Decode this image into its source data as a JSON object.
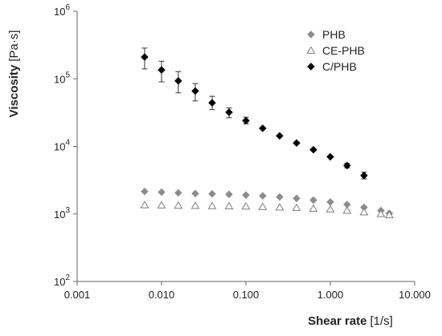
{
  "chart_data": {
    "type": "scatter",
    "x_scale": "log",
    "y_scale": "log",
    "xlim": [
      0.001,
      10
    ],
    "ylim": [
      100,
      1000000
    ],
    "x_ticks": [
      {
        "value": 0.001,
        "label": "0.001"
      },
      {
        "value": 0.01,
        "label": "0.010"
      },
      {
        "value": 0.1,
        "label": "0.100"
      },
      {
        "value": 1,
        "label": "1.000"
      },
      {
        "value": 10,
        "label": "10.000"
      }
    ],
    "y_ticks": [
      {
        "value": 100,
        "base": "10",
        "exp": "2"
      },
      {
        "value": 1000,
        "base": "10",
        "exp": "3"
      },
      {
        "value": 10000,
        "base": "10",
        "exp": "4"
      },
      {
        "value": 100000,
        "base": "10",
        "exp": "5"
      },
      {
        "value": 1000000,
        "base": "10",
        "exp": "6"
      }
    ],
    "xlabel_bold": "Shear rate",
    "xlabel_unit": "[1/s]",
    "ylabel_bold": "Viscosity",
    "ylabel_unit": "[Pa·s]",
    "grid": false,
    "legend_position": "top-right",
    "series": [
      {
        "name": "PHB",
        "marker": "diamond",
        "color": "#8c8c8c",
        "filled": true,
        "points": [
          {
            "x": 0.0063,
            "y": 2150
          },
          {
            "x": 0.01,
            "y": 2100
          },
          {
            "x": 0.0158,
            "y": 2050
          },
          {
            "x": 0.0251,
            "y": 2000
          },
          {
            "x": 0.0398,
            "y": 1980
          },
          {
            "x": 0.0631,
            "y": 1950
          },
          {
            "x": 0.1,
            "y": 1900
          },
          {
            "x": 0.158,
            "y": 1850
          },
          {
            "x": 0.251,
            "y": 1780
          },
          {
            "x": 0.398,
            "y": 1700
          },
          {
            "x": 0.631,
            "y": 1600
          },
          {
            "x": 1.0,
            "y": 1500
          },
          {
            "x": 1.58,
            "y": 1380
          },
          {
            "x": 2.51,
            "y": 1250
          },
          {
            "x": 3.98,
            "y": 1120
          },
          {
            "x": 5.0,
            "y": 1020
          }
        ]
      },
      {
        "name": "CE-PHB",
        "marker": "triangle",
        "color": "#7f7f7f",
        "filled": false,
        "points": [
          {
            "x": 0.0063,
            "y": 1350
          },
          {
            "x": 0.01,
            "y": 1340
          },
          {
            "x": 0.0158,
            "y": 1330
          },
          {
            "x": 0.0251,
            "y": 1320
          },
          {
            "x": 0.0398,
            "y": 1310
          },
          {
            "x": 0.0631,
            "y": 1300
          },
          {
            "x": 0.1,
            "y": 1290
          },
          {
            "x": 0.158,
            "y": 1270
          },
          {
            "x": 0.251,
            "y": 1250
          },
          {
            "x": 0.398,
            "y": 1230
          },
          {
            "x": 0.631,
            "y": 1200
          },
          {
            "x": 1.0,
            "y": 1170
          },
          {
            "x": 1.58,
            "y": 1120
          },
          {
            "x": 2.51,
            "y": 1060
          },
          {
            "x": 3.98,
            "y": 1000
          },
          {
            "x": 5.0,
            "y": 960
          }
        ]
      },
      {
        "name": "C/PHB",
        "marker": "diamond",
        "color": "#000000",
        "filled": true,
        "points": [
          {
            "x": 0.0063,
            "y": 210000,
            "err_low": 140000,
            "err_high": 285000
          },
          {
            "x": 0.01,
            "y": 135000,
            "err_low": 90000,
            "err_high": 182000
          },
          {
            "x": 0.0158,
            "y": 93000,
            "err_low": 62000,
            "err_high": 128000
          },
          {
            "x": 0.0251,
            "y": 66000,
            "err_low": 47000,
            "err_high": 85000
          },
          {
            "x": 0.0398,
            "y": 44000,
            "err_low": 35000,
            "err_high": 55000
          },
          {
            "x": 0.0631,
            "y": 32000,
            "err_low": 26500,
            "err_high": 37000
          },
          {
            "x": 0.1,
            "y": 24000,
            "err_low": 21500,
            "err_high": 27000
          },
          {
            "x": 0.158,
            "y": 18500
          },
          {
            "x": 0.251,
            "y": 14300
          },
          {
            "x": 0.398,
            "y": 11200
          },
          {
            "x": 0.631,
            "y": 8900
          },
          {
            "x": 1.0,
            "y": 7000
          },
          {
            "x": 1.58,
            "y": 5200,
            "err_low": 4800,
            "err_high": 5600
          },
          {
            "x": 2.51,
            "y": 3700,
            "err_low": 3300,
            "err_high": 4150
          }
        ]
      }
    ]
  }
}
